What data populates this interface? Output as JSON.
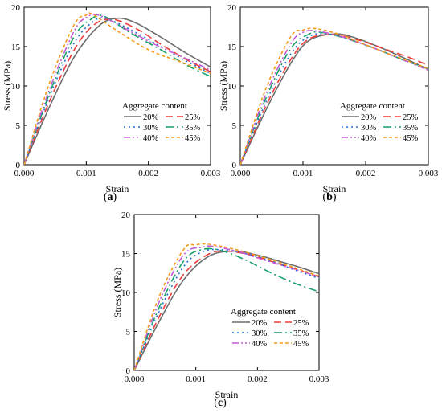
{
  "legend_title": "Aggregate content",
  "series_styles": [
    {
      "name": "20%",
      "color": "#6e6e6e",
      "dash": ""
    },
    {
      "name": "25%",
      "color": "#ee3b3b",
      "dash": "9 5"
    },
    {
      "name": "30%",
      "color": "#1f6fd6",
      "dash": "2 4"
    },
    {
      "name": "35%",
      "color": "#17a06a",
      "dash": "10 4 2 4"
    },
    {
      "name": "40%",
      "color": "#c35ad6",
      "dash": "8 3 2 3 2 3"
    },
    {
      "name": "45%",
      "color": "#f59a1c",
      "dash": "4 3"
    }
  ],
  "chart_data": [
    {
      "type": "line",
      "panel_label": "(a)",
      "xlabel": "Strain",
      "ylabel": "Stress (MPa)",
      "xlim": [
        0,
        0.003
      ],
      "ylim": [
        0,
        20
      ],
      "xticks": [
        "0.000",
        "0.001",
        "0.002",
        "0.003"
      ],
      "yticks": [
        "0",
        "5",
        "10",
        "15",
        "20"
      ],
      "grid": false,
      "legend_position": "lower-right",
      "series": [
        {
          "name": "20%",
          "points": [
            [
              0,
              0
            ],
            [
              0.0004,
              7.2
            ],
            [
              0.0008,
              13.6
            ],
            [
              0.0012,
              17.6
            ],
            [
              0.0015,
              18.6
            ],
            [
              0.0018,
              18.0
            ],
            [
              0.0022,
              16.2
            ],
            [
              0.0026,
              14.2
            ],
            [
              0.003,
              12.4
            ]
          ]
        },
        {
          "name": "25%",
          "points": [
            [
              0,
              0
            ],
            [
              0.0004,
              7.9
            ],
            [
              0.0008,
              14.5
            ],
            [
              0.0011,
              17.6
            ],
            [
              0.0014,
              18.5
            ],
            [
              0.0018,
              17.3
            ],
            [
              0.0022,
              15.3
            ],
            [
              0.0026,
              13.4
            ],
            [
              0.003,
              11.8
            ]
          ]
        },
        {
          "name": "30%",
          "points": [
            [
              0,
              0
            ],
            [
              0.0004,
              8.5
            ],
            [
              0.0008,
              15.4
            ],
            [
              0.0011,
              18.1
            ],
            [
              0.0013,
              18.6
            ],
            [
              0.0017,
              17.2
            ],
            [
              0.0022,
              15.0
            ],
            [
              0.0026,
              13.2
            ],
            [
              0.003,
              11.6
            ]
          ]
        },
        {
          "name": "35%",
          "points": [
            [
              0,
              0
            ],
            [
              0.0004,
              8.9
            ],
            [
              0.0008,
              16.2
            ],
            [
              0.0011,
              18.6
            ],
            [
              0.0013,
              18.8
            ],
            [
              0.0017,
              16.8
            ],
            [
              0.0022,
              14.6
            ],
            [
              0.0026,
              12.7
            ],
            [
              0.003,
              11.2
            ]
          ]
        },
        {
          "name": "40%",
          "points": [
            [
              0,
              0
            ],
            [
              0.0004,
              9.4
            ],
            [
              0.0008,
              16.9
            ],
            [
              0.001,
              18.7
            ],
            [
              0.0012,
              19.0
            ],
            [
              0.0016,
              17.4
            ],
            [
              0.0021,
              15.3
            ],
            [
              0.0026,
              13.5
            ],
            [
              0.003,
              12.0
            ]
          ]
        },
        {
          "name": "45%",
          "points": [
            [
              0,
              0
            ],
            [
              0.0004,
              10.2
            ],
            [
              0.0008,
              17.7
            ],
            [
              0.001,
              19.0
            ],
            [
              0.0011,
              19.1
            ],
            [
              0.0015,
              17.0
            ],
            [
              0.002,
              14.6
            ],
            [
              0.0025,
              13.1
            ],
            [
              0.003,
              11.6
            ]
          ]
        }
      ]
    },
    {
      "type": "line",
      "panel_label": "(b)",
      "xlabel": "Strain",
      "ylabel": "Stress (MPa)",
      "xlim": [
        0,
        0.003
      ],
      "ylim": [
        0,
        20
      ],
      "xticks": [
        "0.000",
        "0.001",
        "0.002",
        "0.003"
      ],
      "yticks": [
        "0",
        "5",
        "10",
        "15",
        "20"
      ],
      "grid": false,
      "legend_position": "lower-right",
      "series": [
        {
          "name": "20%",
          "points": [
            [
              0,
              0
            ],
            [
              0.0004,
              6.8
            ],
            [
              0.0008,
              12.8
            ],
            [
              0.0011,
              15.8
            ],
            [
              0.0015,
              16.6
            ],
            [
              0.0018,
              16.2
            ],
            [
              0.0022,
              15.0
            ],
            [
              0.0026,
              13.6
            ],
            [
              0.003,
              12.1
            ]
          ]
        },
        {
          "name": "25%",
          "points": [
            [
              0,
              0
            ],
            [
              0.0004,
              7.3
            ],
            [
              0.0008,
              13.3
            ],
            [
              0.0011,
              16.0
            ],
            [
              0.0015,
              16.5
            ],
            [
              0.0019,
              15.8
            ],
            [
              0.0023,
              14.7
            ],
            [
              0.0027,
              13.6
            ],
            [
              0.003,
              12.6
            ]
          ]
        },
        {
          "name": "30%",
          "points": [
            [
              0,
              0
            ],
            [
              0.0004,
              7.8
            ],
            [
              0.0008,
              14.0
            ],
            [
              0.0011,
              16.3
            ],
            [
              0.0014,
              16.6
            ],
            [
              0.0018,
              15.8
            ],
            [
              0.0022,
              14.6
            ],
            [
              0.0026,
              13.3
            ],
            [
              0.003,
              12.2
            ]
          ]
        },
        {
          "name": "35%",
          "points": [
            [
              0,
              0
            ],
            [
              0.0004,
              8.3
            ],
            [
              0.0008,
              14.7
            ],
            [
              0.0011,
              16.6
            ],
            [
              0.0013,
              16.8
            ],
            [
              0.0017,
              16.0
            ],
            [
              0.0022,
              14.6
            ],
            [
              0.0026,
              13.3
            ],
            [
              0.003,
              12.2
            ]
          ]
        },
        {
          "name": "40%",
          "points": [
            [
              0,
              0
            ],
            [
              0.0004,
              8.8
            ],
            [
              0.0008,
              15.3
            ],
            [
              0.001,
              16.8
            ],
            [
              0.0012,
              17.0
            ],
            [
              0.0016,
              16.3
            ],
            [
              0.0021,
              14.9
            ],
            [
              0.0026,
              13.3
            ],
            [
              0.003,
              12.0
            ]
          ]
        },
        {
          "name": "45%",
          "points": [
            [
              0,
              0
            ],
            [
              0.0004,
              9.5
            ],
            [
              0.0008,
              16.2
            ],
            [
              0.001,
              17.1
            ],
            [
              0.0012,
              17.3
            ],
            [
              0.0016,
              16.5
            ],
            [
              0.0021,
              14.9
            ],
            [
              0.0026,
              13.4
            ],
            [
              0.003,
              12.2
            ]
          ]
        }
      ]
    },
    {
      "type": "line",
      "panel_label": "(c)",
      "xlabel": "Strain",
      "ylabel": "Stress (MPa)",
      "xlim": [
        0,
        0.003
      ],
      "ylim": [
        0,
        20
      ],
      "xticks": [
        "0.000",
        "0.001",
        "0.002",
        "0.003"
      ],
      "yticks": [
        "0",
        "5",
        "10",
        "15",
        "20"
      ],
      "grid": false,
      "legend_position": "lower-right",
      "series": [
        {
          "name": "20%",
          "points": [
            [
              0,
              0
            ],
            [
              0.0004,
              6.2
            ],
            [
              0.0008,
              11.6
            ],
            [
              0.0012,
              14.6
            ],
            [
              0.0016,
              15.3
            ],
            [
              0.002,
              14.8
            ],
            [
              0.0024,
              13.9
            ],
            [
              0.0027,
              13.2
            ],
            [
              0.003,
              12.4
            ]
          ]
        },
        {
          "name": "25%",
          "points": [
            [
              0,
              0
            ],
            [
              0.0004,
              6.8
            ],
            [
              0.0008,
              12.3
            ],
            [
              0.0012,
              14.9
            ],
            [
              0.0015,
              15.3
            ],
            [
              0.0019,
              14.8
            ],
            [
              0.0023,
              13.8
            ],
            [
              0.0027,
              12.8
            ],
            [
              0.003,
              12.0
            ]
          ]
        },
        {
          "name": "30%",
          "points": [
            [
              0,
              0
            ],
            [
              0.0004,
              7.5
            ],
            [
              0.0008,
              13.3
            ],
            [
              0.0011,
              15.2
            ],
            [
              0.0014,
              15.5
            ],
            [
              0.0018,
              15.0
            ],
            [
              0.0022,
              14.1
            ],
            [
              0.0026,
              12.9
            ],
            [
              0.003,
              11.8
            ]
          ]
        },
        {
          "name": "35%",
          "points": [
            [
              0,
              0
            ],
            [
              0.0004,
              8.0
            ],
            [
              0.0008,
              14.0
            ],
            [
              0.0011,
              15.5
            ],
            [
              0.0014,
              15.4
            ],
            [
              0.0018,
              14.2
            ],
            [
              0.0022,
              12.6
            ],
            [
              0.0026,
              11.2
            ],
            [
              0.003,
              10.1
            ]
          ]
        },
        {
          "name": "40%",
          "points": [
            [
              0,
              0
            ],
            [
              0.0004,
              8.7
            ],
            [
              0.0008,
              14.8
            ],
            [
              0.0011,
              15.8
            ],
            [
              0.0013,
              15.9
            ],
            [
              0.0017,
              15.2
            ],
            [
              0.0021,
              14.2
            ],
            [
              0.0026,
              13.0
            ],
            [
              0.003,
              12.0
            ]
          ]
        },
        {
          "name": "45%",
          "points": [
            [
              0,
              0
            ],
            [
              0.0004,
              9.4
            ],
            [
              0.0008,
              15.5
            ],
            [
              0.001,
              16.1
            ],
            [
              0.0012,
              16.2
            ],
            [
              0.0016,
              15.6
            ],
            [
              0.0021,
              14.5
            ],
            [
              0.0026,
              13.2
            ],
            [
              0.003,
              12.1
            ]
          ]
        }
      ]
    }
  ]
}
